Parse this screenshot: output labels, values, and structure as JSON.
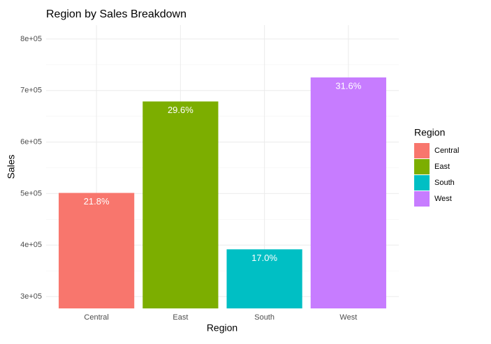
{
  "chart_data": {
    "type": "bar",
    "title": "Region by Sales Breakdown",
    "x_label": "Region",
    "y_label": "Sales",
    "legend_title": "Region",
    "categories": [
      "Central",
      "East",
      "South",
      "West"
    ],
    "values": [
      501240,
      678781,
      391722,
      725458
    ],
    "percent_labels": [
      "21.8%",
      "29.6%",
      "17.0%",
      "31.6%"
    ],
    "colors": [
      "#F8766D",
      "#7CAE00",
      "#00BFC4",
      "#C77CFF"
    ],
    "ylim": [
      277000,
      827000
    ],
    "yticks": [
      {
        "value": 300000,
        "label": "3e+05"
      },
      {
        "value": 400000,
        "label": "4e+05"
      },
      {
        "value": 500000,
        "label": "5e+05"
      },
      {
        "value": 600000,
        "label": "6e+05"
      },
      {
        "value": 700000,
        "label": "7e+05"
      },
      {
        "value": 800000,
        "label": "8e+05"
      }
    ],
    "grid": true,
    "legend": "right"
  }
}
